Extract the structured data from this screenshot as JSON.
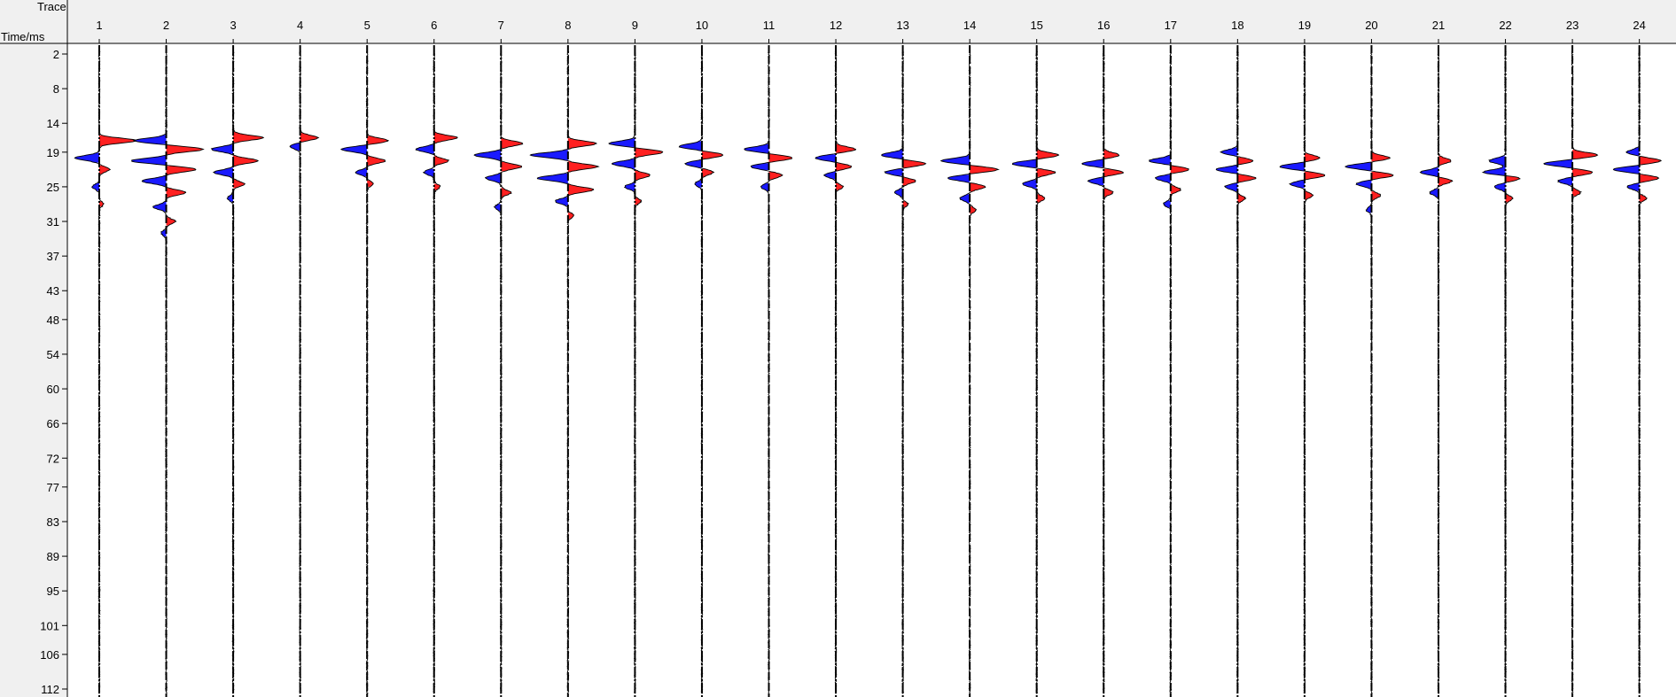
{
  "chart_data": {
    "type": "seismic-wiggle",
    "corner_labels": {
      "trace": "Trace",
      "time": "Time/ms"
    },
    "traces": [
      "1",
      "2",
      "3",
      "4",
      "5",
      "6",
      "7",
      "8",
      "9",
      "10",
      "11",
      "12",
      "13",
      "14",
      "15",
      "16",
      "17",
      "18",
      "19",
      "20",
      "21",
      "22",
      "23",
      "24"
    ],
    "time_ticks": [
      "2",
      "8",
      "14",
      "19",
      "25",
      "31",
      "37",
      "43",
      "48",
      "54",
      "60",
      "66",
      "72",
      "77",
      "83",
      "89",
      "95",
      "101",
      "106",
      "112"
    ],
    "ylim": [
      0,
      113
    ],
    "colors": {
      "positive": "#ff2020",
      "negative": "#1a1aff",
      "trace": "#000000",
      "background": "#ffffff",
      "panel": "#f0f0f0"
    },
    "series": [
      {
        "name": "1",
        "wavelet": [
          {
            "t": 17.0,
            "a": 0.72
          },
          {
            "t": 20.0,
            "a": -0.48
          },
          {
            "t": 22.0,
            "a": 0.2
          },
          {
            "t": 25.0,
            "a": -0.14
          },
          {
            "t": 28.0,
            "a": 0.08
          }
        ]
      },
      {
        "name": "2",
        "wavelet": [
          {
            "t": 17.0,
            "a": -0.62
          },
          {
            "t": 18.5,
            "a": 0.72
          },
          {
            "t": 20.5,
            "a": -0.68
          },
          {
            "t": 22.0,
            "a": 0.58
          },
          {
            "t": 24.0,
            "a": -0.48
          },
          {
            "t": 26.0,
            "a": 0.38
          },
          {
            "t": 28.5,
            "a": -0.25
          },
          {
            "t": 31.0,
            "a": 0.18
          },
          {
            "t": 33.0,
            "a": -0.1
          }
        ]
      },
      {
        "name": "3",
        "wavelet": [
          {
            "t": 16.5,
            "a": 0.58
          },
          {
            "t": 18.5,
            "a": -0.42
          },
          {
            "t": 20.5,
            "a": 0.48
          },
          {
            "t": 22.5,
            "a": -0.38
          },
          {
            "t": 24.5,
            "a": 0.22
          },
          {
            "t": 27.0,
            "a": -0.12
          }
        ]
      },
      {
        "name": "4",
        "wavelet": [
          {
            "t": 16.5,
            "a": 0.35
          },
          {
            "t": 18.0,
            "a": -0.2
          }
        ]
      },
      {
        "name": "5",
        "wavelet": [
          {
            "t": 17.0,
            "a": 0.4
          },
          {
            "t": 18.5,
            "a": -0.5
          },
          {
            "t": 20.5,
            "a": 0.35
          },
          {
            "t": 22.5,
            "a": -0.22
          },
          {
            "t": 24.5,
            "a": 0.12
          }
        ]
      },
      {
        "name": "6",
        "wavelet": [
          {
            "t": 16.5,
            "a": 0.45
          },
          {
            "t": 18.5,
            "a": -0.35
          },
          {
            "t": 20.5,
            "a": 0.28
          },
          {
            "t": 22.5,
            "a": -0.2
          },
          {
            "t": 25.0,
            "a": 0.12
          }
        ]
      },
      {
        "name": "7",
        "wavelet": [
          {
            "t": 17.5,
            "a": 0.42
          },
          {
            "t": 19.5,
            "a": -0.52
          },
          {
            "t": 21.5,
            "a": 0.4
          },
          {
            "t": 23.5,
            "a": -0.3
          },
          {
            "t": 26.0,
            "a": 0.2
          },
          {
            "t": 28.5,
            "a": -0.12
          }
        ]
      },
      {
        "name": "8",
        "wavelet": [
          {
            "t": 17.5,
            "a": 0.55
          },
          {
            "t": 19.5,
            "a": -0.72
          },
          {
            "t": 21.5,
            "a": 0.58
          },
          {
            "t": 23.5,
            "a": -0.6
          },
          {
            "t": 25.5,
            "a": 0.5
          },
          {
            "t": 27.5,
            "a": -0.25
          },
          {
            "t": 30.0,
            "a": 0.12
          }
        ]
      },
      {
        "name": "9",
        "wavelet": [
          {
            "t": 17.5,
            "a": -0.5
          },
          {
            "t": 19.0,
            "a": 0.55
          },
          {
            "t": 21.0,
            "a": -0.45
          },
          {
            "t": 23.0,
            "a": 0.3
          },
          {
            "t": 25.0,
            "a": -0.2
          },
          {
            "t": 27.5,
            "a": 0.12
          }
        ]
      },
      {
        "name": "10",
        "wavelet": [
          {
            "t": 18.0,
            "a": -0.45
          },
          {
            "t": 19.5,
            "a": 0.42
          },
          {
            "t": 21.0,
            "a": -0.32
          },
          {
            "t": 22.5,
            "a": 0.22
          },
          {
            "t": 24.5,
            "a": -0.14
          }
        ]
      },
      {
        "name": "11",
        "wavelet": [
          {
            "t": 18.5,
            "a": -0.48
          },
          {
            "t": 20.0,
            "a": 0.46
          },
          {
            "t": 21.5,
            "a": -0.35
          },
          {
            "t": 23.0,
            "a": 0.26
          },
          {
            "t": 25.0,
            "a": -0.16
          }
        ]
      },
      {
        "name": "12",
        "wavelet": [
          {
            "t": 18.5,
            "a": 0.38
          },
          {
            "t": 20.0,
            "a": -0.4
          },
          {
            "t": 21.5,
            "a": 0.3
          },
          {
            "t": 23.0,
            "a": -0.22
          },
          {
            "t": 25.0,
            "a": 0.14
          }
        ]
      },
      {
        "name": "13",
        "wavelet": [
          {
            "t": 19.5,
            "a": -0.42
          },
          {
            "t": 21.0,
            "a": 0.44
          },
          {
            "t": 22.5,
            "a": -0.35
          },
          {
            "t": 24.0,
            "a": 0.25
          },
          {
            "t": 26.0,
            "a": -0.16
          },
          {
            "t": 28.0,
            "a": 0.1
          }
        ]
      },
      {
        "name": "14",
        "wavelet": [
          {
            "t": 20.5,
            "a": -0.55
          },
          {
            "t": 22.0,
            "a": 0.55
          },
          {
            "t": 23.5,
            "a": -0.42
          },
          {
            "t": 25.0,
            "a": 0.3
          },
          {
            "t": 27.0,
            "a": -0.2
          },
          {
            "t": 29.0,
            "a": 0.12
          }
        ]
      },
      {
        "name": "15",
        "wavelet": [
          {
            "t": 19.5,
            "a": 0.42
          },
          {
            "t": 21.0,
            "a": -0.48
          },
          {
            "t": 22.5,
            "a": 0.36
          },
          {
            "t": 24.5,
            "a": -0.28
          },
          {
            "t": 27.0,
            "a": 0.16
          }
        ]
      },
      {
        "name": "16",
        "wavelet": [
          {
            "t": 19.5,
            "a": 0.3
          },
          {
            "t": 21.0,
            "a": -0.42
          },
          {
            "t": 22.5,
            "a": 0.38
          },
          {
            "t": 24.0,
            "a": -0.3
          },
          {
            "t": 26.0,
            "a": 0.18
          }
        ]
      },
      {
        "name": "17",
        "wavelet": [
          {
            "t": 20.5,
            "a": -0.42
          },
          {
            "t": 22.0,
            "a": 0.36
          },
          {
            "t": 23.5,
            "a": -0.3
          },
          {
            "t": 25.5,
            "a": 0.2
          },
          {
            "t": 28.0,
            "a": -0.14
          }
        ]
      },
      {
        "name": "18",
        "wavelet": [
          {
            "t": 19.0,
            "a": -0.32
          },
          {
            "t": 20.5,
            "a": 0.3
          },
          {
            "t": 22.0,
            "a": -0.42
          },
          {
            "t": 23.5,
            "a": 0.35
          },
          {
            "t": 25.0,
            "a": -0.25
          },
          {
            "t": 27.0,
            "a": 0.15
          }
        ]
      },
      {
        "name": "19",
        "wavelet": [
          {
            "t": 20.0,
            "a": 0.3
          },
          {
            "t": 21.5,
            "a": -0.48
          },
          {
            "t": 23.0,
            "a": 0.4
          },
          {
            "t": 24.5,
            "a": -0.28
          },
          {
            "t": 26.5,
            "a": 0.16
          }
        ]
      },
      {
        "name": "20",
        "wavelet": [
          {
            "t": 20.0,
            "a": 0.35
          },
          {
            "t": 21.5,
            "a": -0.5
          },
          {
            "t": 23.0,
            "a": 0.42
          },
          {
            "t": 24.5,
            "a": -0.3
          },
          {
            "t": 26.5,
            "a": 0.18
          },
          {
            "t": 29.0,
            "a": -0.1
          }
        ]
      },
      {
        "name": "21",
        "wavelet": [
          {
            "t": 20.5,
            "a": 0.25
          },
          {
            "t": 22.5,
            "a": -0.35
          },
          {
            "t": 24.0,
            "a": 0.26
          },
          {
            "t": 26.0,
            "a": -0.18
          }
        ]
      },
      {
        "name": "22",
        "wavelet": [
          {
            "t": 20.5,
            "a": -0.32
          },
          {
            "t": 22.5,
            "a": -0.45
          },
          {
            "t": 23.5,
            "a": 0.3
          },
          {
            "t": 25.0,
            "a": -0.22
          },
          {
            "t": 27.0,
            "a": 0.14
          }
        ]
      },
      {
        "name": "23",
        "wavelet": [
          {
            "t": 19.5,
            "a": 0.5
          },
          {
            "t": 21.0,
            "a": -0.55
          },
          {
            "t": 22.5,
            "a": 0.4
          },
          {
            "t": 24.0,
            "a": -0.28
          },
          {
            "t": 26.0,
            "a": 0.16
          }
        ]
      },
      {
        "name": "24",
        "wavelet": [
          {
            "t": 19.0,
            "a": -0.25
          },
          {
            "t": 20.5,
            "a": 0.42
          },
          {
            "t": 22.0,
            "a": -0.5
          },
          {
            "t": 23.5,
            "a": 0.38
          },
          {
            "t": 25.0,
            "a": -0.24
          },
          {
            "t": 27.0,
            "a": 0.14
          }
        ]
      }
    ]
  }
}
